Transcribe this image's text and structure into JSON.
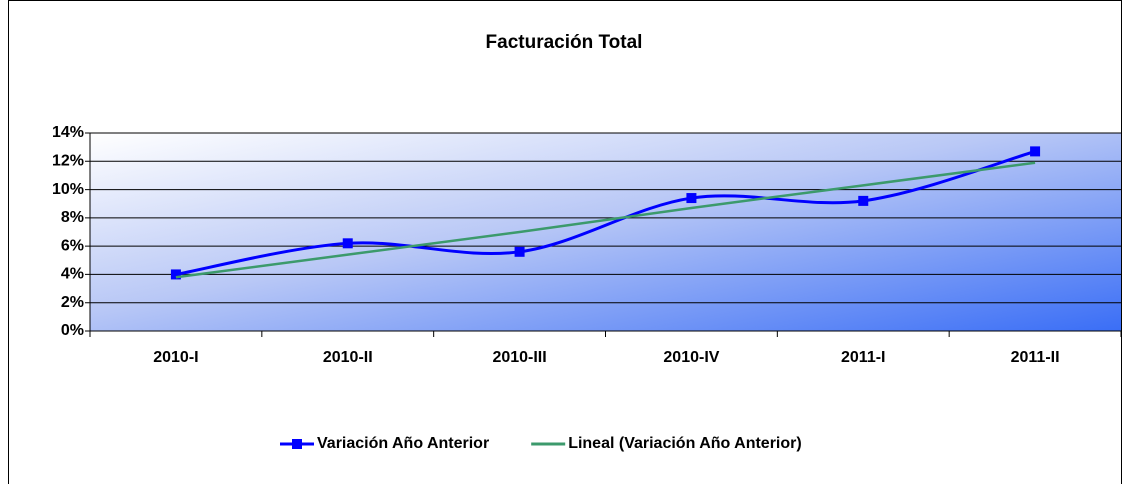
{
  "chart_data": {
    "type": "line",
    "title": "Facturación Total",
    "categories": [
      "2010-I",
      "2010-II",
      "2010-III",
      "2010-IV",
      "2011-I",
      "2011-II"
    ],
    "series": [
      {
        "name": "Variación Año Anterior",
        "color": "#0000ff",
        "smooth": true,
        "marker": "square",
        "values": [
          4.0,
          6.2,
          5.6,
          9.4,
          9.2,
          12.7
        ]
      },
      {
        "name": "Lineal (Variación Año Anterior)",
        "color": "#3c9a6c",
        "smooth": false,
        "values": [
          3.8,
          5.4,
          7.0,
          8.7,
          10.3,
          11.9
        ]
      }
    ],
    "ylim": [
      0,
      14
    ],
    "yticks": [
      {
        "value": 0,
        "label": "0%"
      },
      {
        "value": 2,
        "label": "2%"
      },
      {
        "value": 4,
        "label": "4%"
      },
      {
        "value": 6,
        "label": "6%"
      },
      {
        "value": 8,
        "label": "8%"
      },
      {
        "value": 10,
        "label": "10%"
      },
      {
        "value": 12,
        "label": "12%"
      },
      {
        "value": 14,
        "label": "14%"
      }
    ],
    "grid": true,
    "legend": "bottom"
  }
}
